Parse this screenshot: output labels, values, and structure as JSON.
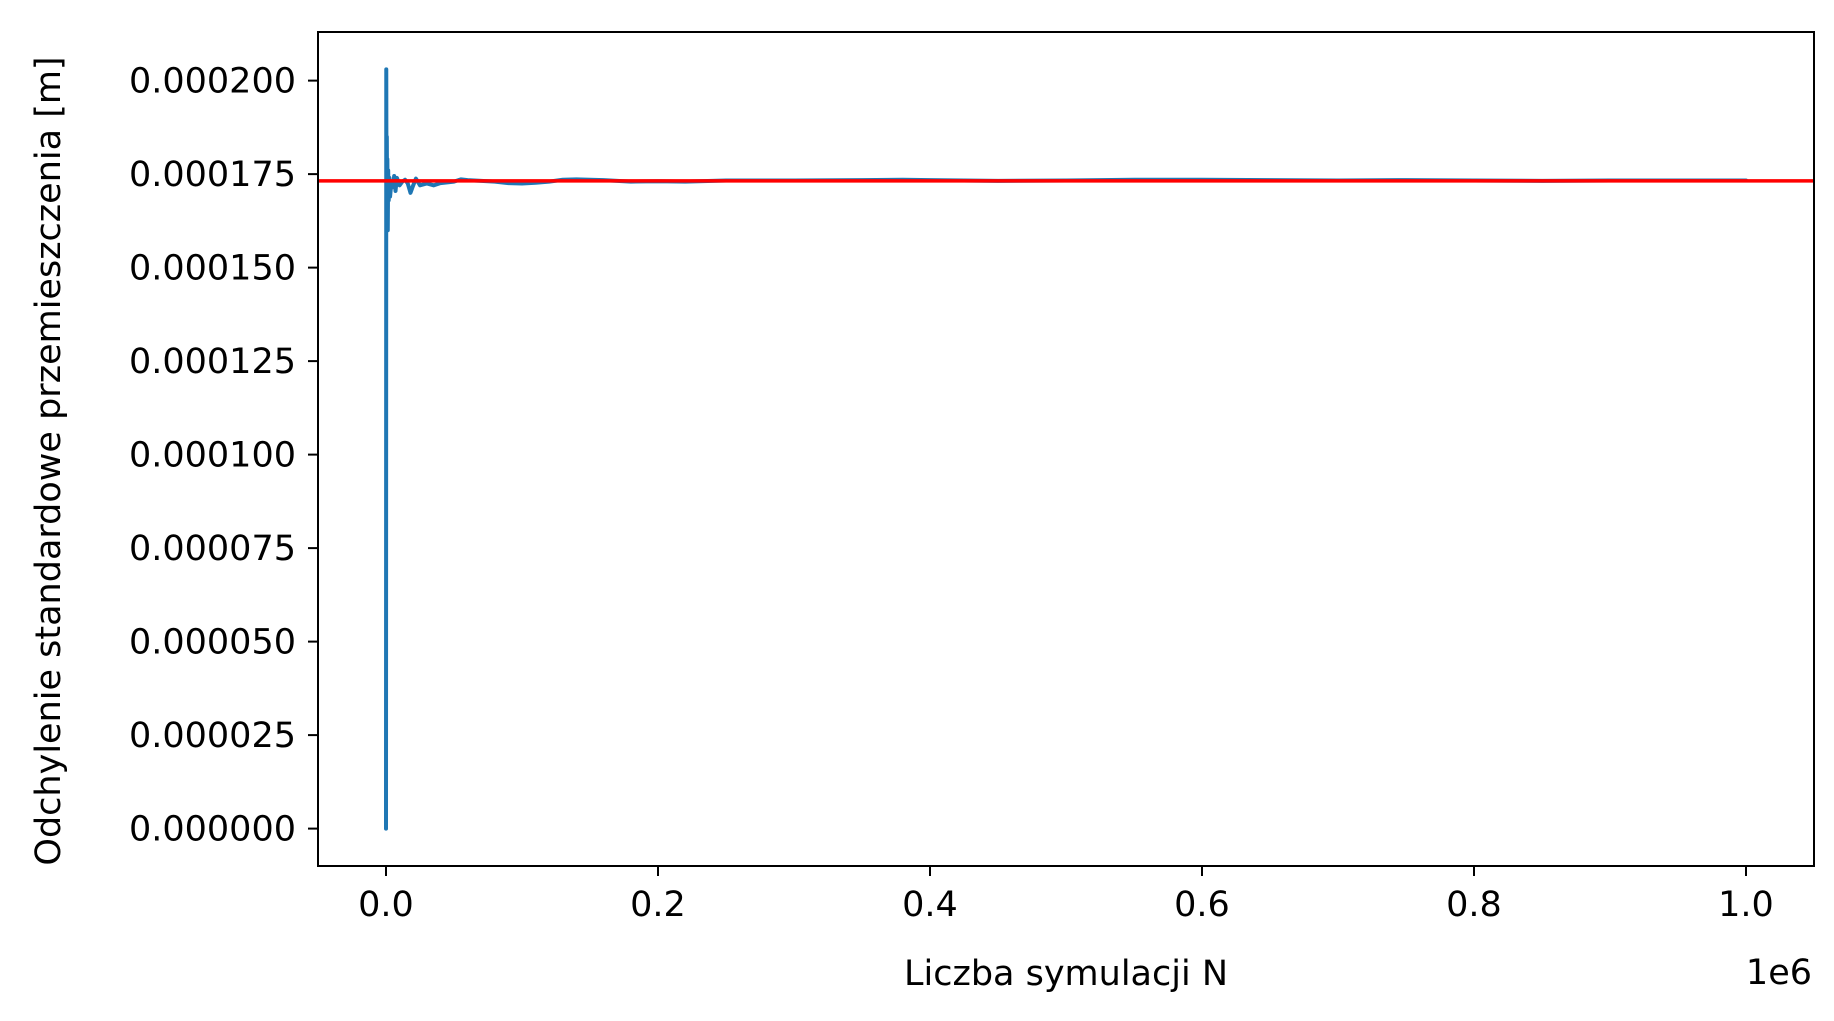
{
  "chart_data": {
    "type": "line",
    "title": "",
    "xlabel": "Liczba symulacji N",
    "ylabel": "Odchylenie standardowe przemieszczenia [m]",
    "x_offset_label": "1e6",
    "xlim": [
      -0.05,
      1.05
    ],
    "ylim": [
      -1e-05,
      0.000213
    ],
    "x_ticks": [
      0.0,
      0.2,
      0.4,
      0.6,
      0.8,
      1.0
    ],
    "x_tick_labels": [
      "0.0",
      "0.2",
      "0.4",
      "0.6",
      "0.8",
      "1.0"
    ],
    "y_ticks": [
      0.0,
      2.5e-05,
      5e-05,
      7.5e-05,
      0.0001,
      0.000125,
      0.00015,
      0.000175,
      0.0002
    ],
    "y_tick_labels": [
      "0.000000",
      "0.000025",
      "0.000050",
      "0.000075",
      "0.000100",
      "0.000125",
      "0.000150",
      "0.000175",
      "0.000200"
    ],
    "grid": false,
    "legend": "none",
    "reference_line": {
      "y": 0.0001732,
      "color": "#ff0000"
    },
    "series": [
      {
        "color": "#1f77b4",
        "x": [
          0.0,
          0.0002,
          0.0004,
          0.0006,
          0.0008,
          0.001,
          0.0013,
          0.0016,
          0.002,
          0.0025,
          0.003,
          0.004,
          0.005,
          0.006,
          0.007,
          0.008,
          0.01,
          0.012,
          0.014,
          0.016,
          0.018,
          0.02,
          0.022,
          0.025,
          0.03,
          0.035,
          0.04,
          0.045,
          0.05,
          0.055,
          0.06,
          0.07,
          0.08,
          0.09,
          0.1,
          0.11,
          0.12,
          0.13,
          0.14,
          0.16,
          0.18,
          0.2,
          0.22,
          0.25,
          0.3,
          0.35,
          0.38,
          0.4,
          0.45,
          0.5,
          0.55,
          0.6,
          0.65,
          0.7,
          0.75,
          0.8,
          0.85,
          0.9,
          0.95,
          1.0
        ],
        "y": [
          0.0,
          0.000203,
          0.000161,
          0.000185,
          0.000166,
          0.000179,
          0.00016,
          0.000176,
          0.000168,
          0.000174,
          0.000169,
          0.000173,
          0.0001715,
          0.0001745,
          0.0001705,
          0.000174,
          0.000172,
          0.000173,
          0.0001735,
          0.0001725,
          0.00017,
          0.000172,
          0.0001738,
          0.000172,
          0.0001725,
          0.000172,
          0.0001726,
          0.0001728,
          0.000173,
          0.0001736,
          0.0001734,
          0.0001732,
          0.000173,
          0.0001726,
          0.0001725,
          0.0001727,
          0.000173,
          0.0001735,
          0.0001736,
          0.0001734,
          0.000173,
          0.0001731,
          0.000173,
          0.0001733,
          0.0001733,
          0.0001734,
          0.0001735,
          0.0001734,
          0.0001732,
          0.0001733,
          0.0001735,
          0.0001735,
          0.0001734,
          0.0001733,
          0.0001734,
          0.0001733,
          0.0001732,
          0.0001733,
          0.0001733,
          0.0001733
        ]
      }
    ]
  }
}
